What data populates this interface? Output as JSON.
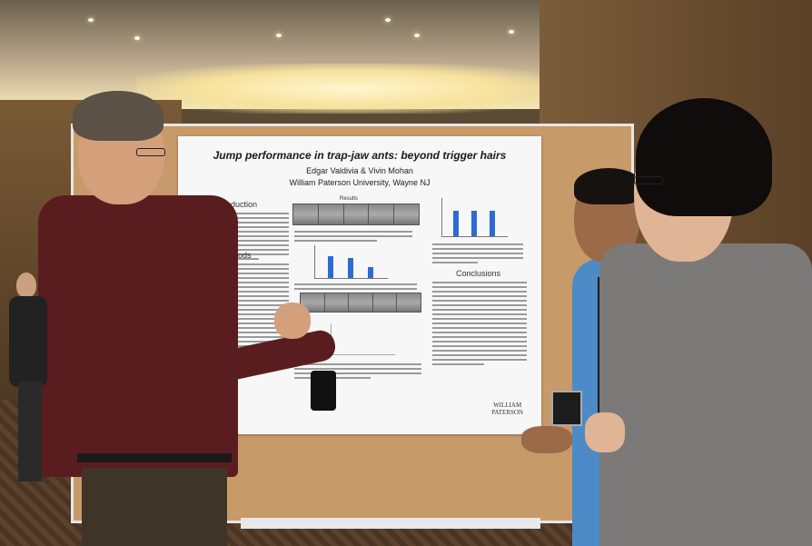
{
  "poster": {
    "title": "Jump performance in trap-jaw ants: beyond trigger hairs",
    "authors": "Edgar Valdivia & Vivin Mohan",
    "affiliation": "William Paterson University, Wayne NJ",
    "sections": {
      "introduction": "Introduction",
      "methods": "Methods",
      "results": "Results",
      "conclusions": "Conclusions"
    },
    "logo_line1": "WILLIAM",
    "logo_line2": "PATERSON"
  },
  "colors": {
    "poster_bg": "#f7f7f7",
    "board": "#c79a6a",
    "bar_blue": "#2e6ad3"
  }
}
